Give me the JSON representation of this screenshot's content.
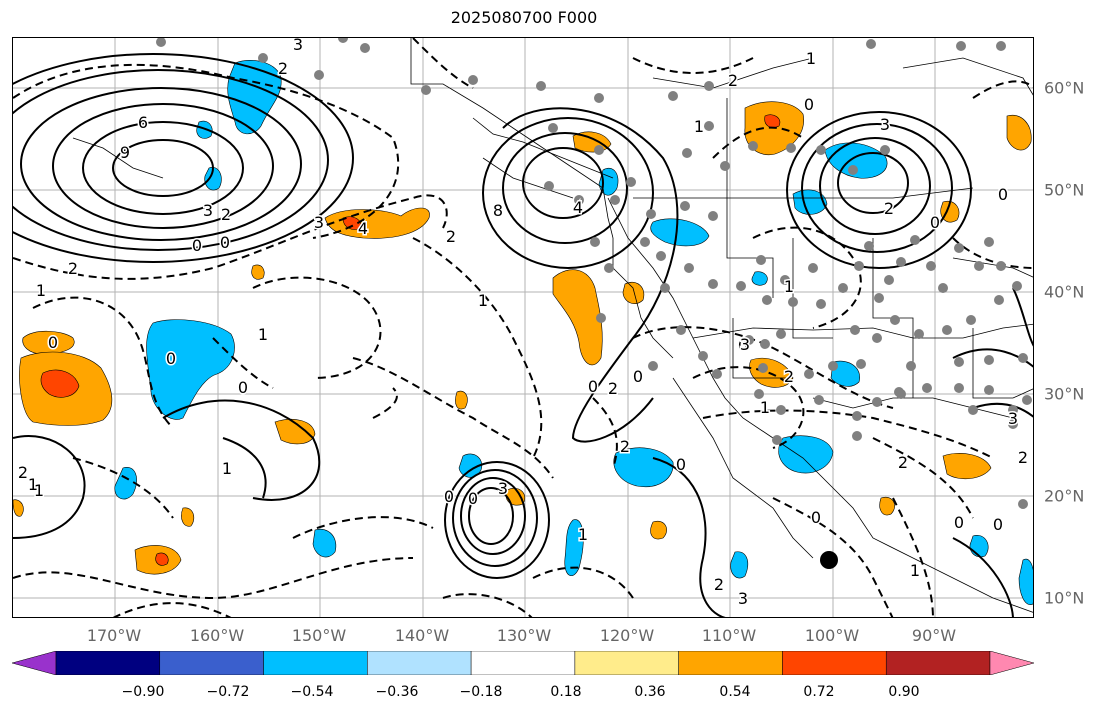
{
  "title": "2025080700 F000",
  "axes": {
    "longitude_labels": [
      "170°W",
      "160°W",
      "150°W",
      "140°W",
      "130°W",
      "120°W",
      "110°W",
      "100°W",
      "90°W"
    ],
    "latitude_labels": [
      "60°N",
      "50°N",
      "40°N",
      "30°N",
      "20°N",
      "10°N"
    ]
  },
  "colorbar": {
    "colors": [
      "#9932cc",
      "#000080",
      "#3a5fcd",
      "#00bfff",
      "#b0e2ff",
      "#ffffff",
      "#ffec8b",
      "#ffa500",
      "#ff4500",
      "#b22222",
      "#ff88b0"
    ],
    "tick_labels": [
      "−0.90",
      "−0.72",
      "−0.54",
      "−0.36",
      "−0.18",
      "0.18",
      "0.36",
      "0.54",
      "0.72",
      "0.90"
    ],
    "extend": "both"
  },
  "contour_labels": [
    {
      "text": "3"
    },
    {
      "text": "2"
    },
    {
      "text": "6"
    },
    {
      "text": "9"
    },
    {
      "text": "3"
    },
    {
      "text": "2"
    },
    {
      "text": "0"
    },
    {
      "text": "0"
    },
    {
      "text": "2"
    },
    {
      "text": "1"
    },
    {
      "text": "0"
    },
    {
      "text": "1"
    },
    {
      "text": "0"
    },
    {
      "text": "0"
    },
    {
      "text": "1"
    },
    {
      "text": "2"
    },
    {
      "text": "1"
    },
    {
      "text": "3"
    },
    {
      "text": "4"
    },
    {
      "text": "2"
    },
    {
      "text": "1"
    },
    {
      "text": "0"
    },
    {
      "text": "2"
    },
    {
      "text": "2"
    },
    {
      "text": "4"
    },
    {
      "text": "8"
    },
    {
      "text": "0"
    },
    {
      "text": "1"
    },
    {
      "text": "2"
    },
    {
      "text": "1"
    },
    {
      "text": "0"
    },
    {
      "text": "3"
    },
    {
      "text": "2"
    },
    {
      "text": "0"
    },
    {
      "text": "1"
    },
    {
      "text": "0"
    },
    {
      "text": "3"
    },
    {
      "text": "2"
    },
    {
      "text": "1"
    },
    {
      "text": "0"
    },
    {
      "text": "3"
    },
    {
      "text": "2"
    },
    {
      "text": "0"
    },
    {
      "text": "2"
    },
    {
      "text": "1"
    },
    {
      "text": "0"
    },
    {
      "text": "0"
    },
    {
      "text": "0"
    },
    {
      "text": "1"
    },
    {
      "text": "0"
    },
    {
      "text": "3"
    },
    {
      "text": "3"
    },
    {
      "text": "2"
    },
    {
      "text": "0"
    },
    {
      "text": "1"
    }
  ],
  "colors": {
    "contour": "#000000",
    "grid": "#aaaaaa",
    "station_marker": "#808080",
    "highlight_marker": "#000000",
    "tick_label": "#666666"
  }
}
